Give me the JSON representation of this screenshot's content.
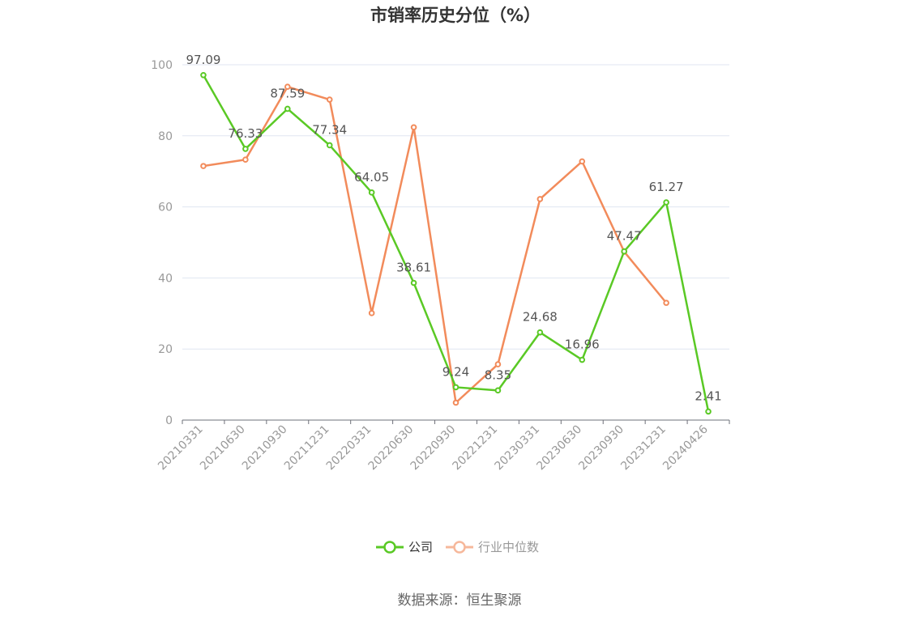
{
  "chart_data": {
    "type": "line",
    "title": "市销率历史分位（%）",
    "categories": [
      "20210331",
      "20210630",
      "20210930",
      "20211231",
      "20220331",
      "20220630",
      "20220930",
      "20221231",
      "20230331",
      "20230630",
      "20230930",
      "20231231",
      "20240426"
    ],
    "ylim": [
      0,
      100
    ],
    "yticks": [
      0,
      20,
      40,
      60,
      80,
      100
    ],
    "grid": true,
    "legend_position": "bottom",
    "series": [
      {
        "name": "公司",
        "color": "#5ac925",
        "values": [
          97.09,
          76.33,
          87.59,
          77.34,
          64.05,
          38.61,
          9.24,
          8.35,
          24.68,
          16.96,
          47.47,
          61.27,
          2.41
        ],
        "labels": [
          "97.09",
          "76.33",
          "87.59",
          "77.34",
          "64.05",
          "38.61",
          "9.24",
          "8.35",
          "24.68",
          "16.96",
          "47.47",
          "61.27",
          "2.41"
        ]
      },
      {
        "name": "行业中位数",
        "color": "#f28b5b",
        "legend_color": "#f6b89b",
        "values": [
          71.5,
          73.3,
          93.8,
          90.2,
          30.1,
          82.4,
          4.9,
          15.7,
          62.2,
          72.8,
          47.4,
          33.0,
          null
        ]
      }
    ]
  },
  "source_text": "数据来源：恒生聚源"
}
